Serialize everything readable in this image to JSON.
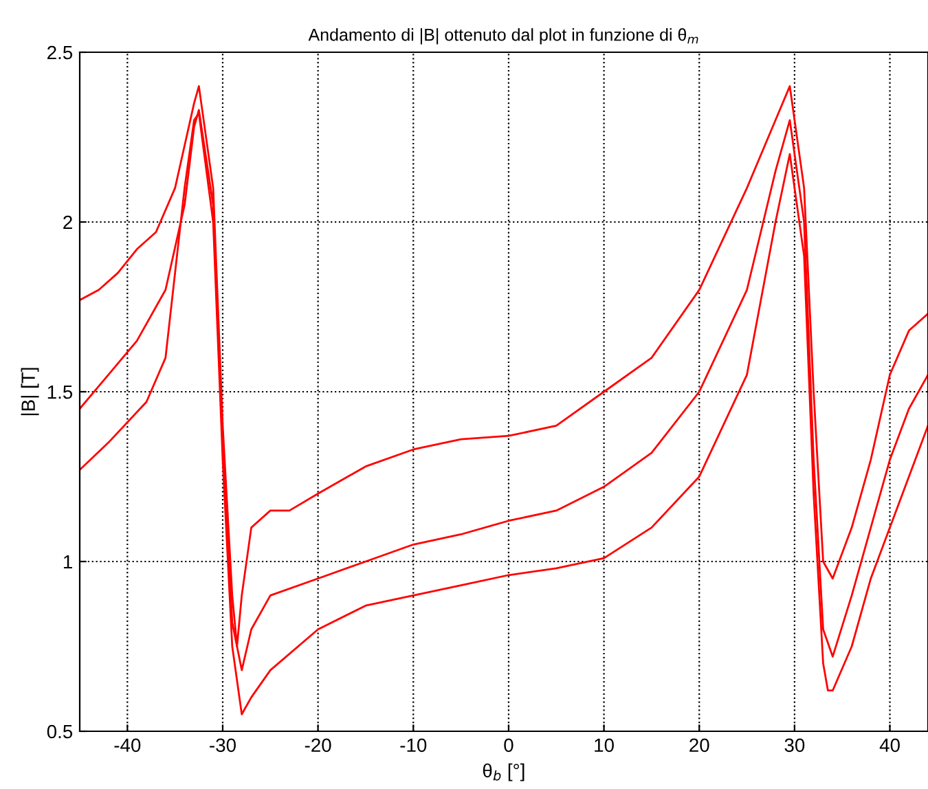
{
  "chart_data": {
    "type": "line",
    "title": "Andamento di |B| ottenuto dal plot in funzione di θ$_{m}$",
    "xlabel": "θ$_{b}$ [°]",
    "ylabel": "|B| [T]",
    "xlim": [
      -45,
      44
    ],
    "ylim": [
      0.5,
      2.5
    ],
    "xticks": [
      -40,
      -30,
      -20,
      -10,
      0,
      10,
      20,
      30,
      40
    ],
    "yticks": [
      0.5,
      1,
      1.5,
      2,
      2.5
    ],
    "grid": true,
    "line_style": "solid",
    "marker": "none",
    "series": [
      {
        "color": "#ff0000",
        "x": [
          -45,
          -43,
          -41,
          -39,
          -37,
          -35,
          -33,
          -32.5,
          -31,
          -30,
          -29,
          -28.5,
          -28,
          -27,
          -25,
          -23,
          -20,
          -15,
          -10,
          -5,
          0,
          5,
          10,
          15,
          20,
          25,
          28,
          29.5,
          31,
          32,
          33,
          34,
          36,
          38,
          40,
          42,
          44
        ],
        "values": [
          1.77,
          1.8,
          1.85,
          1.92,
          1.97,
          2.1,
          2.35,
          2.4,
          2.1,
          1.4,
          0.9,
          0.75,
          0.9,
          1.1,
          1.15,
          1.15,
          1.2,
          1.28,
          1.33,
          1.36,
          1.37,
          1.4,
          1.5,
          1.6,
          1.8,
          2.1,
          2.3,
          2.4,
          2.1,
          1.5,
          1.0,
          0.95,
          1.1,
          1.3,
          1.55,
          1.68,
          1.73
        ]
      },
      {
        "color": "#ff0000",
        "x": [
          -45,
          -42,
          -39,
          -36,
          -34,
          -33,
          -32.5,
          -31,
          -30,
          -29,
          -28,
          -27,
          -25,
          -20,
          -15,
          -10,
          -5,
          0,
          5,
          10,
          15,
          20,
          25,
          28,
          29.5,
          31,
          32,
          33,
          34,
          36,
          38,
          40,
          42,
          44
        ],
        "values": [
          1.45,
          1.55,
          1.65,
          1.8,
          2.05,
          2.28,
          2.33,
          2.05,
          1.35,
          0.82,
          0.68,
          0.8,
          0.9,
          0.95,
          1.0,
          1.05,
          1.08,
          1.12,
          1.15,
          1.22,
          1.32,
          1.5,
          1.8,
          2.15,
          2.3,
          2.0,
          1.3,
          0.8,
          0.72,
          0.9,
          1.1,
          1.3,
          1.45,
          1.55
        ]
      },
      {
        "color": "#ff0000",
        "x": [
          -45,
          -42,
          -38,
          -36,
          -35,
          -34,
          -33,
          -32.5,
          -31,
          -30,
          -29,
          -28,
          -27,
          -25,
          -20,
          -15,
          -10,
          -5,
          0,
          5,
          10,
          15,
          20,
          25,
          28,
          29.5,
          31,
          32,
          33,
          33.5,
          34,
          36,
          38,
          40,
          42,
          44
        ],
        "values": [
          1.27,
          1.35,
          1.47,
          1.6,
          1.85,
          2.1,
          2.3,
          2.32,
          2.0,
          1.3,
          0.75,
          0.55,
          0.6,
          0.68,
          0.8,
          0.87,
          0.9,
          0.93,
          0.96,
          0.98,
          1.01,
          1.1,
          1.25,
          1.55,
          2.0,
          2.2,
          1.9,
          1.2,
          0.7,
          0.62,
          0.62,
          0.75,
          0.95,
          1.1,
          1.25,
          1.4
        ]
      }
    ]
  }
}
